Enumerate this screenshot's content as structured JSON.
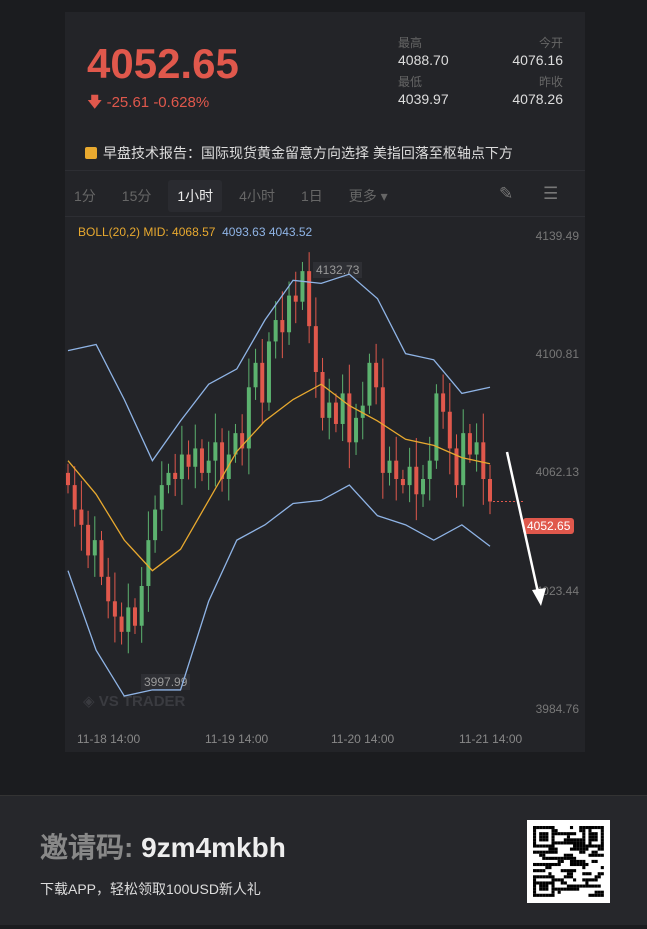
{
  "quote": {
    "price": "4052.65",
    "change": "-25.61",
    "change_pct": "-0.628%",
    "direction": "down",
    "high_label": "最高",
    "high": "4088.70",
    "open_label": "今开",
    "open": "4076.16",
    "low_label": "最低",
    "low": "4039.97",
    "prev_close_label": "昨收",
    "prev_close": "4078.26"
  },
  "news": {
    "icon": "report-icon",
    "text": "早盘技术报告：国际现货黄金留意方向选择 美指回落至枢轴点下方"
  },
  "tabs": [
    {
      "label": "1分"
    },
    {
      "label": "15分"
    },
    {
      "label": "1小时",
      "active": true
    },
    {
      "label": "4小时"
    },
    {
      "label": "1日"
    },
    {
      "label": "更多 ▾"
    }
  ],
  "tools": {
    "draw": "pencil-icon",
    "settings": "indicator-settings-icon"
  },
  "indicator": {
    "name": "BOLL(20,2)",
    "mid": "MID: 4068.57",
    "upper": "4093.63",
    "lower": "4043.52"
  },
  "colors": {
    "up": "#5cb26f",
    "down": "#e0584c",
    "mid": "#e8a92f",
    "band": "#8fb4e6"
  },
  "chart_data": {
    "type": "candlestick",
    "y_ticks": [
      "4139.49",
      "4100.81",
      "4062.13",
      "4023.44",
      "3984.76"
    ],
    "ylim": [
      3984.76,
      4139.49
    ],
    "x_ticks": [
      "11-18 14:00",
      "11-19 14:00",
      "11-20 14:00",
      "11-21 14:00"
    ],
    "max_label": "4132.73",
    "min_label": "3997.99",
    "last_price": "4052.65",
    "watermark": "VS TRADER",
    "closes": [
      4058,
      4050,
      4045,
      4035,
      4040,
      4028,
      4020,
      4015,
      4010,
      4018,
      4012,
      4025,
      4040,
      4050,
      4058,
      4062,
      4060,
      4068,
      4064,
      4070,
      4062,
      4066,
      4072,
      4060,
      4068,
      4075,
      4070,
      4090,
      4098,
      4085,
      4105,
      4112,
      4108,
      4120,
      4118,
      4128,
      4110,
      4095,
      4080,
      4085,
      4078,
      4088,
      4072,
      4080,
      4084,
      4098,
      4090,
      4062,
      4066,
      4060,
      4058,
      4064,
      4055,
      4060,
      4066,
      4088,
      4082,
      4070,
      4058,
      4075,
      4068,
      4072,
      4060,
      4052.65
    ],
    "boll_upper": [
      4102,
      4104,
      4086,
      4066,
      4079,
      4091,
      4096,
      4112,
      4125,
      4124,
      4127,
      4119,
      4101,
      4099,
      4088,
      4090
    ],
    "boll_mid": [
      4066,
      4055,
      4040,
      4030,
      4037,
      4053,
      4069,
      4079,
      4086,
      4091,
      4084,
      4079,
      4073,
      4071,
      4067,
      4065
    ],
    "boll_lower": [
      4030,
      4004,
      3989,
      3991,
      3991,
      4020,
      4040,
      4045,
      4052,
      4053,
      4058,
      4048,
      4045,
      4040,
      4045,
      4038
    ]
  },
  "banner": {
    "code_label": "邀请码:",
    "code": "9zm4mkbh",
    "subtitle": "下载APP，轻松领取100USD新人礼",
    "qr": "qr-code"
  }
}
